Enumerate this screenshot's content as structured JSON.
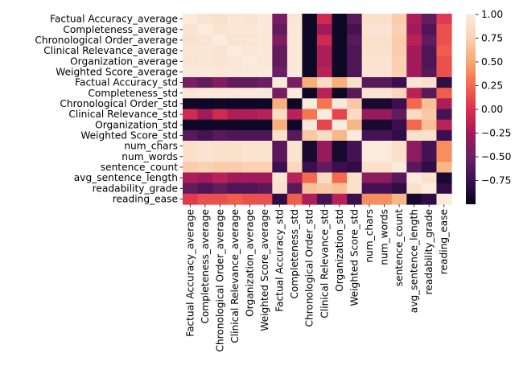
{
  "chart_data": {
    "type": "heatmap",
    "title": "",
    "xlabel": "",
    "ylabel": "",
    "rows": [
      "Factual Accuracy_average",
      "Completeness_average",
      "Chronological Order_average",
      "Clinical Relevance_average",
      "Organization_average",
      "Weighted Score_average",
      "Factual Accuracy_std",
      "Completeness_std",
      "Chronological Order_std",
      "Clinical Relevance_std",
      "Organization_std",
      "Weighted Score_std",
      "num_chars",
      "num_words",
      "sentence_count",
      "avg_sentence_length",
      "readability_grade",
      "reading_ease"
    ],
    "columns": [
      "Factual Accuracy_average",
      "Completeness_average",
      "Chronological Order_average",
      "Clinical Relevance_average",
      "Organization_average",
      "Weighted Score_average",
      "Factual Accuracy_std",
      "Completeness_std",
      "Chronological Order_std",
      "Clinical Relevance_std",
      "Organization_std",
      "Weighted Score_std",
      "num_chars",
      "num_words",
      "sentence_count",
      "avg_sentence_length",
      "readability_grade",
      "reading_ease"
    ],
    "values": [
      [
        1.0,
        0.92,
        0.9,
        0.95,
        0.93,
        0.97,
        -0.45,
        0.95,
        -0.95,
        -0.05,
        -0.95,
        -0.6,
        0.88,
        0.88,
        0.72,
        -0.2,
        -0.55,
        0.05
      ],
      [
        0.92,
        1.0,
        0.93,
        0.95,
        0.95,
        0.97,
        -0.55,
        0.98,
        -0.95,
        -0.25,
        -0.95,
        -0.7,
        0.92,
        0.92,
        0.75,
        -0.25,
        -0.65,
        0.15
      ],
      [
        0.9,
        0.93,
        1.0,
        0.93,
        0.93,
        0.96,
        -0.4,
        0.97,
        -0.95,
        -0.05,
        -0.95,
        -0.6,
        0.9,
        0.9,
        0.72,
        -0.15,
        -0.55,
        0.15
      ],
      [
        0.95,
        0.95,
        0.93,
        1.0,
        0.95,
        0.98,
        -0.55,
        0.97,
        -0.95,
        -0.2,
        -0.95,
        -0.65,
        0.9,
        0.9,
        0.72,
        -0.25,
        -0.65,
        0.2
      ],
      [
        0.93,
        0.95,
        0.93,
        0.95,
        1.0,
        0.97,
        -0.55,
        0.97,
        -0.95,
        -0.2,
        -0.95,
        -0.65,
        0.92,
        0.92,
        0.75,
        -0.25,
        -0.65,
        0.15
      ],
      [
        0.97,
        0.97,
        0.96,
        0.98,
        0.97,
        1.0,
        -0.5,
        0.98,
        -0.95,
        -0.15,
        -0.95,
        -0.65,
        0.92,
        0.92,
        0.75,
        -0.25,
        -0.6,
        0.15
      ],
      [
        -0.45,
        -0.55,
        -0.4,
        -0.55,
        -0.55,
        -0.5,
        1.0,
        -0.45,
        0.55,
        0.85,
        0.55,
        0.9,
        -0.6,
        -0.6,
        -0.75,
        0.95,
        0.9,
        -0.8
      ],
      [
        0.95,
        0.98,
        0.97,
        0.97,
        0.97,
        0.98,
        -0.45,
        1.0,
        -0.95,
        -0.15,
        -0.95,
        -0.6,
        0.93,
        0.93,
        0.8,
        -0.15,
        -0.6,
        0.2
      ],
      [
        -0.95,
        -0.95,
        -0.95,
        -0.95,
        -0.95,
        -0.95,
        0.55,
        -0.95,
        1.0,
        0.3,
        0.98,
        0.7,
        -0.9,
        -0.9,
        -0.75,
        0.25,
        0.65,
        -0.2
      ],
      [
        -0.05,
        -0.25,
        -0.05,
        -0.2,
        -0.2,
        -0.15,
        0.85,
        -0.15,
        0.3,
        1.0,
        0.1,
        0.85,
        -0.3,
        -0.3,
        -0.55,
        0.85,
        0.7,
        -0.7
      ],
      [
        -0.95,
        -0.95,
        -0.95,
        -0.95,
        -0.95,
        -0.95,
        0.55,
        -0.95,
        0.98,
        0.1,
        1.0,
        0.6,
        -0.9,
        -0.9,
        -0.75,
        0.25,
        0.65,
        -0.15
      ],
      [
        -0.6,
        -0.7,
        -0.6,
        -0.65,
        -0.65,
        -0.65,
        0.9,
        -0.6,
        0.7,
        0.85,
        0.6,
        1.0,
        -0.7,
        -0.7,
        -0.8,
        0.9,
        0.9,
        -0.75
      ],
      [
        0.88,
        0.92,
        0.9,
        0.9,
        0.92,
        0.92,
        -0.6,
        0.93,
        -0.9,
        -0.3,
        -0.9,
        -0.7,
        1.0,
        1.0,
        0.9,
        -0.35,
        -0.7,
        0.4
      ],
      [
        0.88,
        0.92,
        0.9,
        0.9,
        0.92,
        0.92,
        -0.6,
        0.93,
        -0.9,
        -0.3,
        -0.9,
        -0.7,
        1.0,
        1.0,
        0.9,
        -0.35,
        -0.7,
        0.4
      ],
      [
        0.72,
        0.75,
        0.72,
        0.72,
        0.75,
        0.75,
        -0.75,
        0.8,
        -0.75,
        -0.55,
        -0.75,
        -0.8,
        0.9,
        0.9,
        1.0,
        -0.6,
        -0.8,
        0.6
      ],
      [
        -0.2,
        -0.25,
        -0.15,
        -0.25,
        -0.25,
        -0.25,
        0.95,
        -0.15,
        0.25,
        0.85,
        0.25,
        0.9,
        -0.35,
        -0.35,
        -0.6,
        1.0,
        0.9,
        -0.9
      ],
      [
        -0.55,
        -0.65,
        -0.55,
        -0.65,
        -0.65,
        -0.6,
        0.9,
        -0.6,
        0.65,
        0.7,
        0.65,
        0.9,
        -0.7,
        -0.7,
        -0.8,
        0.9,
        1.0,
        -0.8
      ],
      [
        0.05,
        0.15,
        0.15,
        0.2,
        0.15,
        0.15,
        -0.8,
        0.2,
        -0.2,
        -0.7,
        -0.15,
        -0.75,
        0.4,
        0.4,
        0.6,
        -0.9,
        -0.8,
        1.0
      ]
    ],
    "vmin": -1.0,
    "vmax": 1.0,
    "colorbar_ticks": [
      "1.00",
      "0.75",
      "0.50",
      "0.25",
      "0.00",
      "−0.25",
      "−0.50",
      "−0.75"
    ],
    "colorbar_tick_values": [
      1.0,
      0.75,
      0.5,
      0.25,
      0.0,
      -0.25,
      -0.5,
      -0.75
    ],
    "colormap_stops": [
      "#03051a",
      "#3b0f4f",
      "#6b1f62",
      "#a11a5b",
      "#db2e4f",
      "#f4694d",
      "#f7a66d",
      "#fad1b3",
      "#faebdd"
    ]
  }
}
